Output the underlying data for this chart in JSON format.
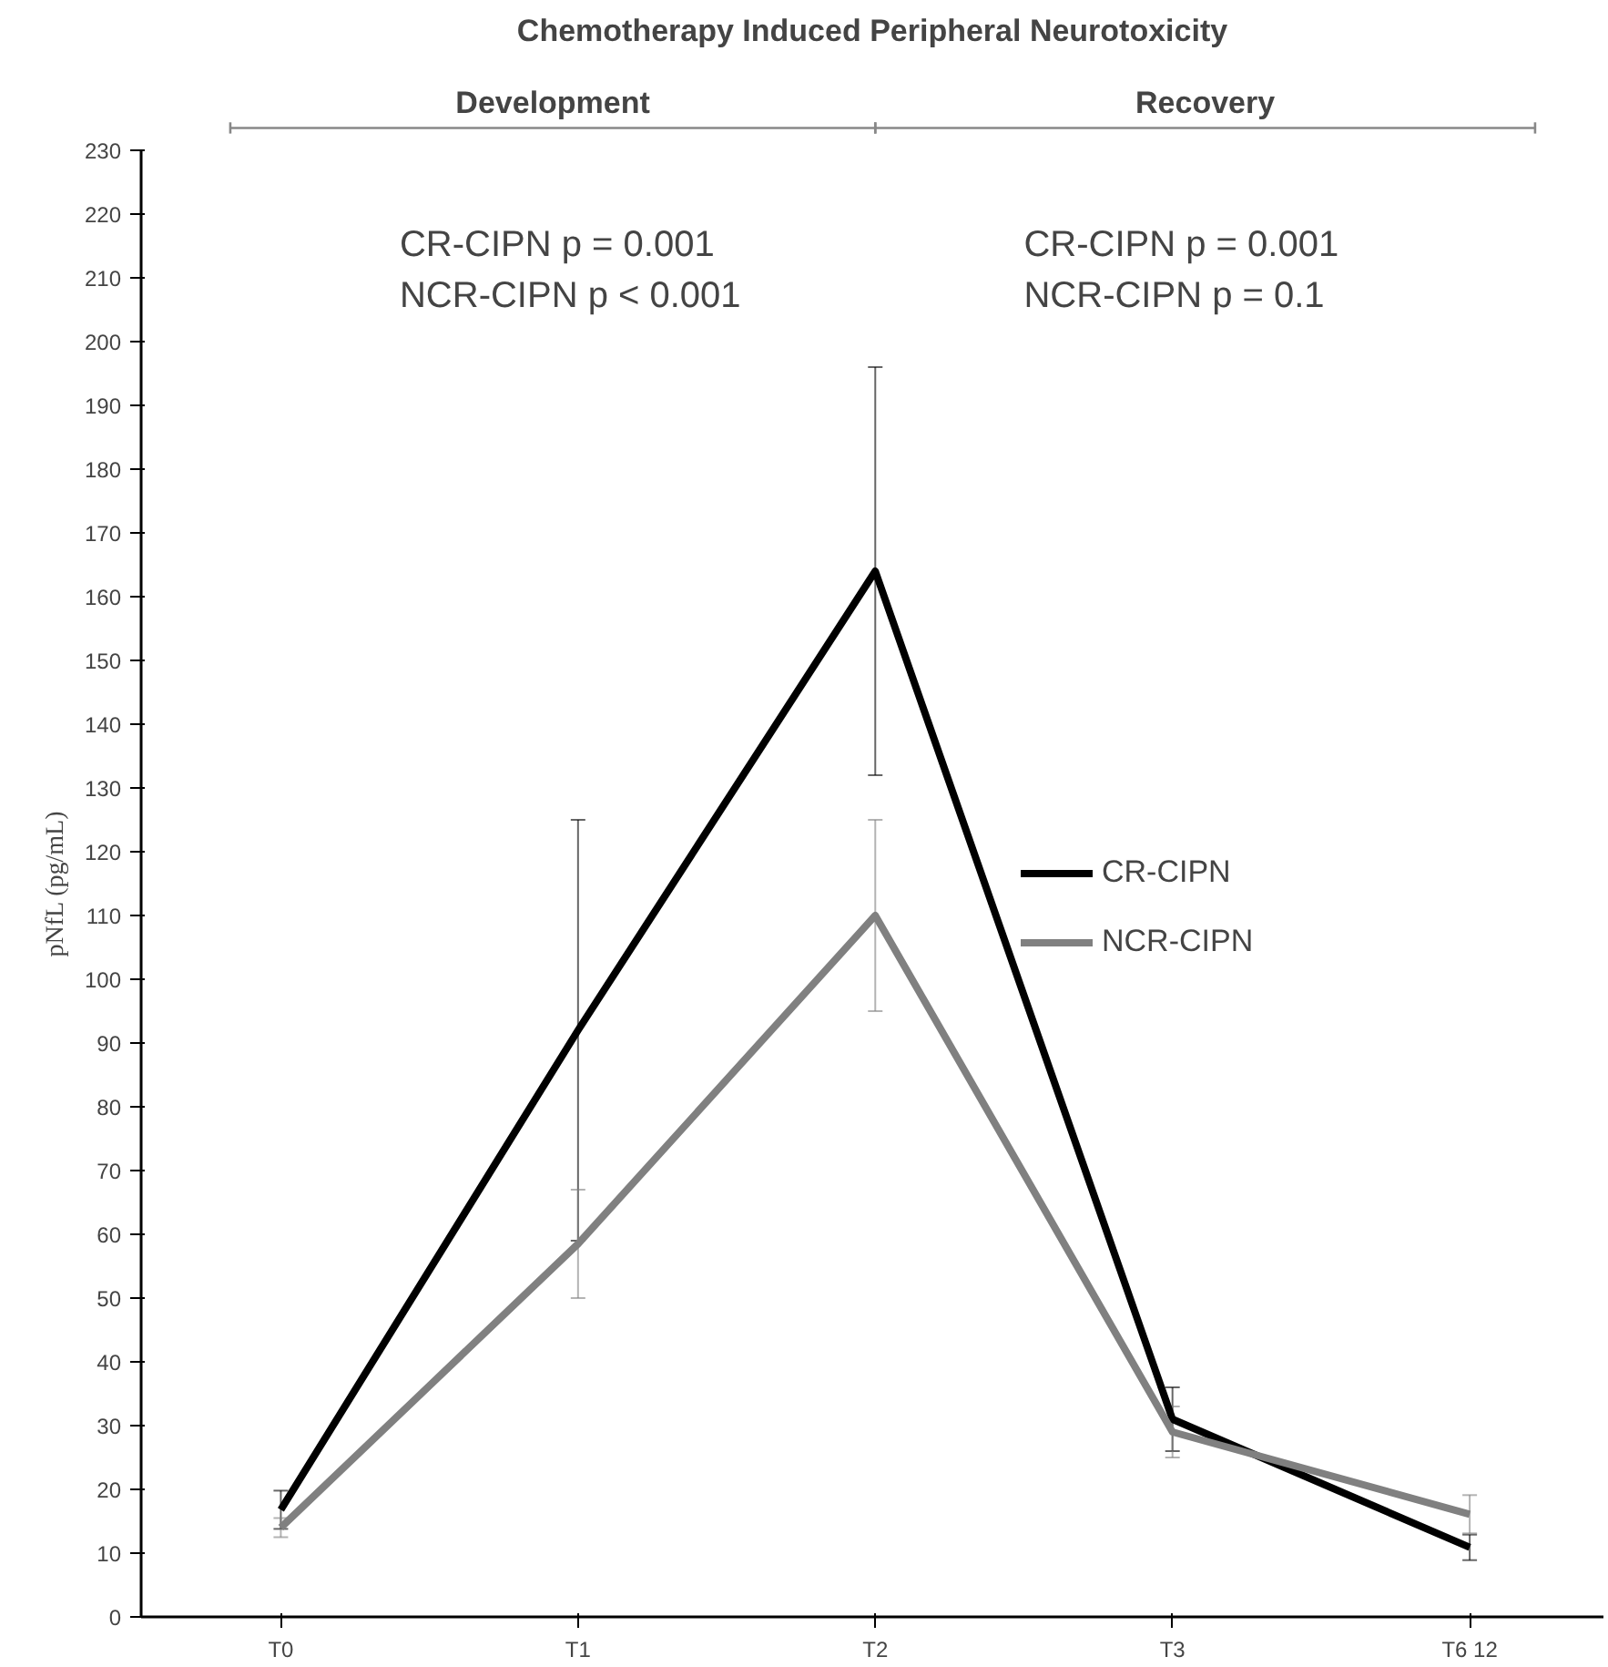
{
  "chart_data": {
    "type": "line",
    "title": "Chemotherapy Induced Peripheral Neurotoxicity",
    "ylabel": "pNfL (pg/mL)",
    "categories": [
      "T0",
      "T1",
      "T2",
      "T3",
      "T6 12"
    ],
    "series": [
      {
        "name": "CR-CIPN",
        "color": "#000000",
        "values": [
          16.8,
          92,
          164,
          31,
          10.9
        ],
        "errors": [
          3,
          33,
          32,
          5,
          2
        ]
      },
      {
        "name": "NCR-CIPN",
        "color": "#808080",
        "values": [
          14,
          58.5,
          110,
          29,
          16.1
        ],
        "errors": [
          1.5,
          8.5,
          15,
          4,
          3
        ]
      }
    ],
    "annotations": [
      "Development",
      "Recovery",
      "CR-CIPN     p = 0.001",
      "NCR-CIPN  p < 0.001",
      "CR-CIPN     p = 0.001",
      "NCR-CIPN  p = 0.1"
    ],
    "ylim": [
      0,
      230
    ],
    "yticks": [
      0,
      10,
      20,
      30,
      40,
      50,
      60,
      70,
      80,
      90,
      100,
      110,
      120,
      130,
      140,
      150,
      160,
      170,
      180,
      190,
      200,
      210,
      220,
      230
    ],
    "grid": false,
    "legend": "right",
    "marker": "none",
    "line_style": "solid"
  }
}
